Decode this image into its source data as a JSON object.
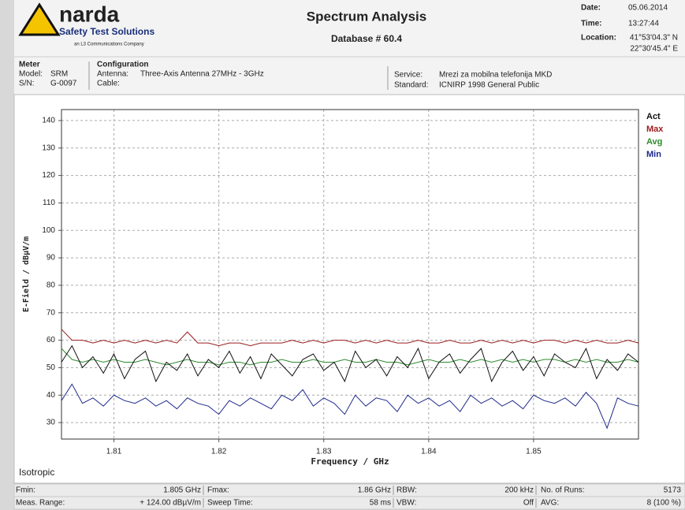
{
  "header": {
    "brand": "narda",
    "brand_sub": "Safety Test Solutions",
    "brand_note": "an L3 Communications Company",
    "title": "Spectrum Analysis",
    "subtitle": "Database # 60.4",
    "date_label": "Date:",
    "date": "05.06.2014",
    "time_label": "Time:",
    "time": "13:27:44",
    "location_label": "Location:",
    "location": [
      "41°53'04.3\" N",
      "22°30'45.4\" E"
    ]
  },
  "meter": {
    "heading": "Meter",
    "model_label": "Model:",
    "model": "SRM",
    "sn_label": "S/N:",
    "sn": "G-0097"
  },
  "configuration": {
    "heading": "Configuration",
    "antenna_label": "Antenna:",
    "antenna": "Three-Axis Antenna 27MHz - 3GHz",
    "cable_label": "Cable:"
  },
  "service": {
    "service_label": "Service:",
    "service": "Mrezi za mobilna telefonija MKD",
    "standard_label": "Standard:",
    "standard": "ICNIRP 1998 General Public"
  },
  "chart_data": {
    "type": "line",
    "xlabel": "Frequency / GHz",
    "ylabel": "E-Field / dBµV/m",
    "xlim": [
      1.805,
      1.86
    ],
    "xticks": [
      1.81,
      1.82,
      1.83,
      1.84,
      1.85
    ],
    "ylim": [
      24,
      144
    ],
    "yticks": [
      30,
      40,
      50,
      60,
      70,
      80,
      90,
      100,
      110,
      120,
      130,
      140
    ],
    "grid": true,
    "legend": "top-right",
    "x": [
      1.805,
      1.806,
      1.807,
      1.808,
      1.809,
      1.81,
      1.811,
      1.812,
      1.813,
      1.814,
      1.815,
      1.816,
      1.817,
      1.818,
      1.819,
      1.82,
      1.821,
      1.822,
      1.823,
      1.824,
      1.825,
      1.826,
      1.827,
      1.828,
      1.829,
      1.83,
      1.831,
      1.832,
      1.833,
      1.834,
      1.835,
      1.836,
      1.837,
      1.838,
      1.839,
      1.84,
      1.841,
      1.842,
      1.843,
      1.844,
      1.845,
      1.846,
      1.847,
      1.848,
      1.849,
      1.85,
      1.851,
      1.852,
      1.853,
      1.854,
      1.855,
      1.856,
      1.857,
      1.858,
      1.859,
      1.86
    ],
    "series": [
      {
        "name": "Act",
        "color": "#111111",
        "values": [
          52,
          58,
          50,
          54,
          48,
          55,
          46,
          53,
          56,
          45,
          52,
          49,
          55,
          47,
          53,
          50,
          56,
          48,
          54,
          46,
          55,
          51,
          47,
          53,
          55,
          49,
          52,
          45,
          56,
          50,
          53,
          47,
          54,
          50,
          57,
          46,
          52,
          55,
          48,
          53,
          57,
          45,
          52,
          56,
          49,
          54,
          47,
          55,
          52,
          50,
          57,
          46,
          53,
          49,
          55,
          52
        ]
      },
      {
        "name": "Max",
        "color": "#9b1c1c",
        "values": [
          64,
          60,
          60,
          59,
          60,
          59,
          60,
          59,
          60,
          59,
          60,
          59,
          63,
          59,
          59,
          58,
          59,
          59,
          58,
          59,
          59,
          59,
          60,
          59,
          60,
          59,
          60,
          60,
          59,
          60,
          59,
          60,
          59,
          59,
          60,
          59,
          59,
          60,
          59,
          59,
          60,
          59,
          60,
          59,
          60,
          59,
          60,
          60,
          59,
          60,
          59,
          60,
          59,
          59,
          60,
          59
        ]
      },
      {
        "name": "Avg",
        "color": "#2e8b2e",
        "values": [
          57,
          53,
          52,
          53,
          52,
          53,
          52,
          52,
          53,
          52,
          51,
          52,
          53,
          52,
          52,
          51,
          52,
          52,
          51,
          52,
          52,
          53,
          52,
          52,
          53,
          52,
          52,
          53,
          52,
          52,
          53,
          52,
          52,
          51,
          52,
          53,
          52,
          52,
          53,
          52,
          53,
          52,
          53,
          52,
          53,
          52,
          53,
          53,
          52,
          53,
          52,
          53,
          52,
          52,
          53,
          52
        ]
      },
      {
        "name": "Min",
        "color": "#1f2a8c",
        "values": [
          38,
          44,
          37,
          39,
          36,
          40,
          38,
          37,
          39,
          36,
          38,
          35,
          39,
          37,
          36,
          33,
          38,
          36,
          39,
          37,
          35,
          40,
          38,
          42,
          36,
          39,
          37,
          33,
          40,
          36,
          39,
          38,
          34,
          40,
          37,
          39,
          36,
          38,
          34,
          40,
          37,
          39,
          36,
          38,
          35,
          40,
          38,
          37,
          39,
          36,
          41,
          37,
          28,
          39,
          37,
          36
        ]
      }
    ]
  },
  "footer": {
    "mode": "Isotropic",
    "rows": [
      [
        "Fmin:",
        "1.805 GHz",
        "Fmax:",
        "1.86 GHz",
        "RBW:",
        "200 kHz",
        "No. of Runs:",
        "5173"
      ],
      [
        "Meas. Range:",
        "+ 124.00 dBµV/m",
        "Sweep Time:",
        "58 ms",
        "VBW:",
        "Off",
        "AVG:",
        "8  (100 %)"
      ]
    ]
  }
}
